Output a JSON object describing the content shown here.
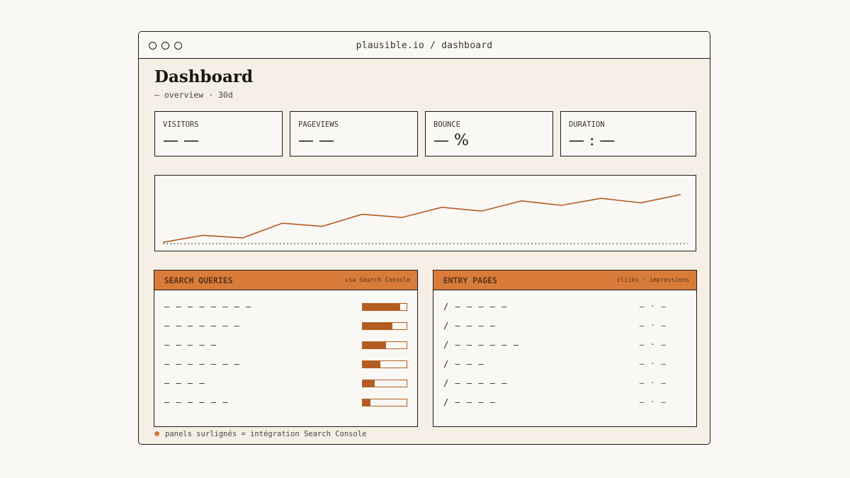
{
  "browser": {
    "url": "plausible.io / dashboard",
    "controls": [
      "close",
      "minimize",
      "maximize"
    ]
  },
  "header": {
    "title": "Dashboard",
    "subtitle": "— overview · 30d"
  },
  "stats": [
    {
      "label": "VISITORS",
      "value": "— —"
    },
    {
      "label": "PAGEVIEWS",
      "value": "— —"
    },
    {
      "label": "BOUNCE",
      "value": "— %"
    },
    {
      "label": "DURATION",
      "value": "— : —"
    }
  ],
  "chart_data": {
    "type": "line",
    "x": [
      1,
      2,
      3,
      4,
      5,
      6,
      7,
      8,
      9,
      10,
      11,
      12,
      13,
      14
    ],
    "series": [
      {
        "values": [
          2,
          13,
          9,
          32,
          27,
          46,
          41,
          57,
          51,
          67,
          60,
          71,
          64,
          77
        ]
      }
    ],
    "ylim": [
      0,
      100
    ],
    "baseline": "dotted",
    "color": "#b35d22"
  },
  "search_queries": {
    "title": "SEARCH QUERIES",
    "meta": "via Search Console",
    "rows": [
      {
        "label": "— — — — — — — —",
        "share": 0.86
      },
      {
        "label": "— — — — — — —",
        "share": 0.68
      },
      {
        "label": "— — — — —",
        "share": 0.54
      },
      {
        "label": "— — — — — — —",
        "share": 0.4
      },
      {
        "label": "— — — —",
        "share": 0.28
      },
      {
        "label": "— — — — — —",
        "share": 0.17
      }
    ]
  },
  "entry_pages": {
    "title": "ENTRY PAGES",
    "meta": "clicks · impressions",
    "rows": [
      {
        "path": "/ — — — — —",
        "value": "— · —"
      },
      {
        "path": "/ — — — —",
        "value": "— · —"
      },
      {
        "path": "/ — — — — — —",
        "value": "— · —"
      },
      {
        "path": "/ — — —",
        "value": "— · —"
      },
      {
        "path": "/ — — — — —",
        "value": "— · —"
      },
      {
        "path": "/ — — — —",
        "value": "— · —"
      }
    ]
  },
  "footnote": "panels surlignés = intégration Search Console",
  "colors": {
    "accent": "#d97c3a",
    "accent_dark": "#b35d22",
    "ink": "#1f1b17",
    "background": "#f5efe6"
  }
}
